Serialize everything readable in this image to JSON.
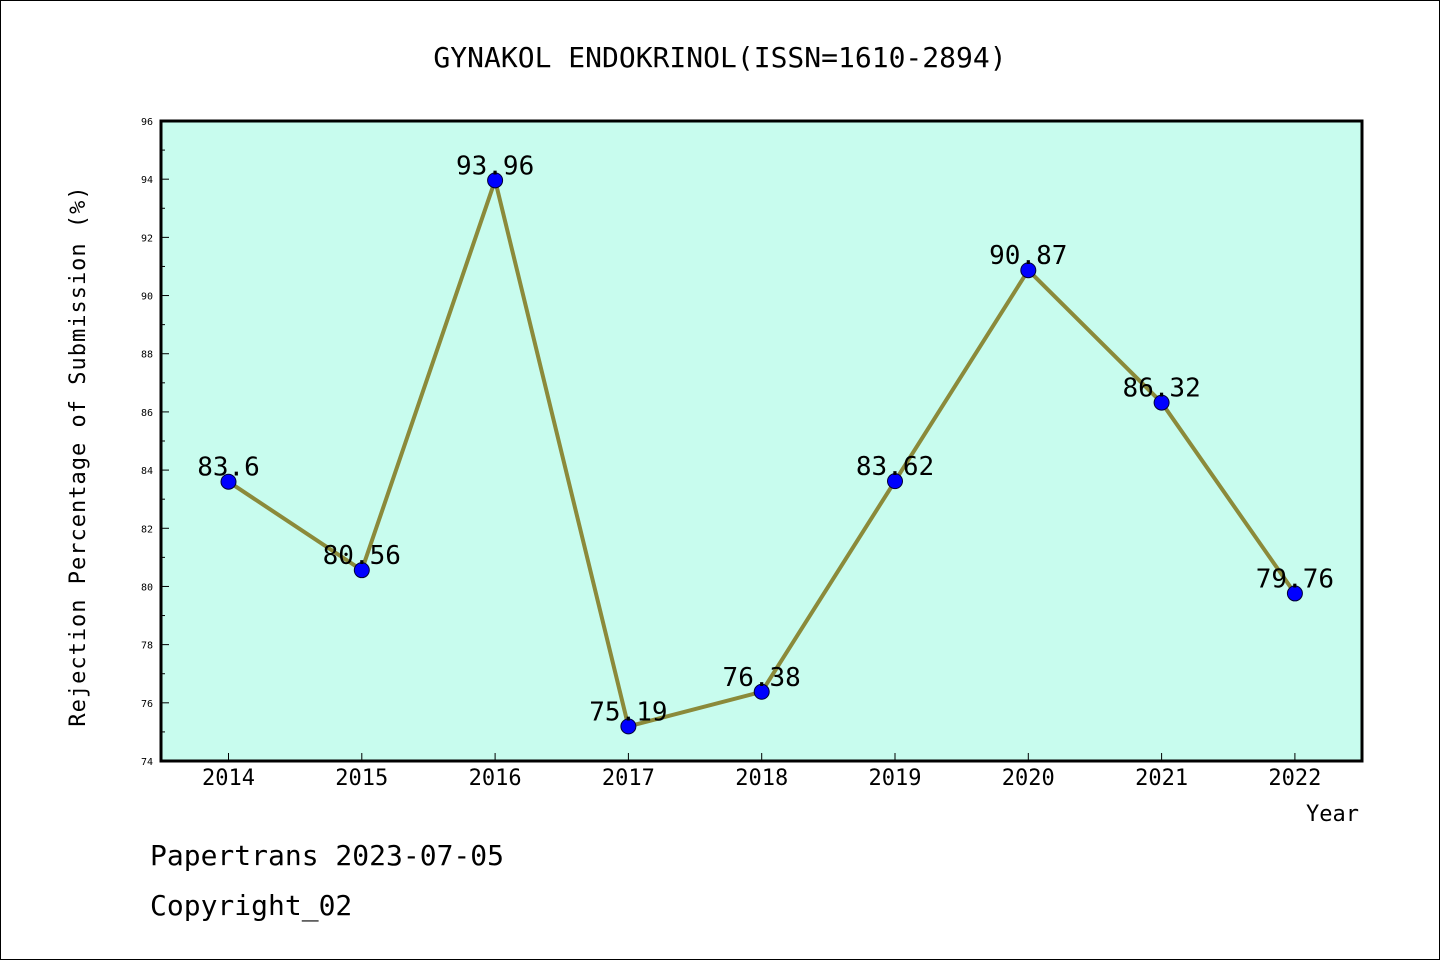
{
  "chart_data": {
    "type": "line",
    "title": "GYNAKOL ENDOKRINOL(ISSN=1610-2894)",
    "xlabel": "Year",
    "ylabel": "Rejection Percentage of Submission (%)",
    "categories": [
      "2014",
      "2015",
      "2016",
      "2017",
      "2018",
      "2019",
      "2020",
      "2021",
      "2022"
    ],
    "values": [
      83.6,
      80.56,
      93.96,
      75.19,
      76.38,
      83.62,
      90.87,
      86.32,
      79.76
    ],
    "value_labels": [
      "83.6",
      "80.56",
      "93.96",
      "75.19",
      "76.38",
      "83.62",
      "90.87",
      "86.32",
      "79.76"
    ],
    "ylim": [
      74,
      96
    ],
    "yticks": [
      "74",
      "76",
      "78",
      "80",
      "82",
      "84",
      "86",
      "88",
      "90",
      "92",
      "94",
      "96"
    ],
    "grid": false,
    "colors": {
      "plot_background": "#c8fcee",
      "line": "#8b8a3a",
      "marker": "#0000ff"
    }
  },
  "footer": {
    "source": "Papertrans 2023-07-05",
    "copyright": "Copyright_02"
  }
}
